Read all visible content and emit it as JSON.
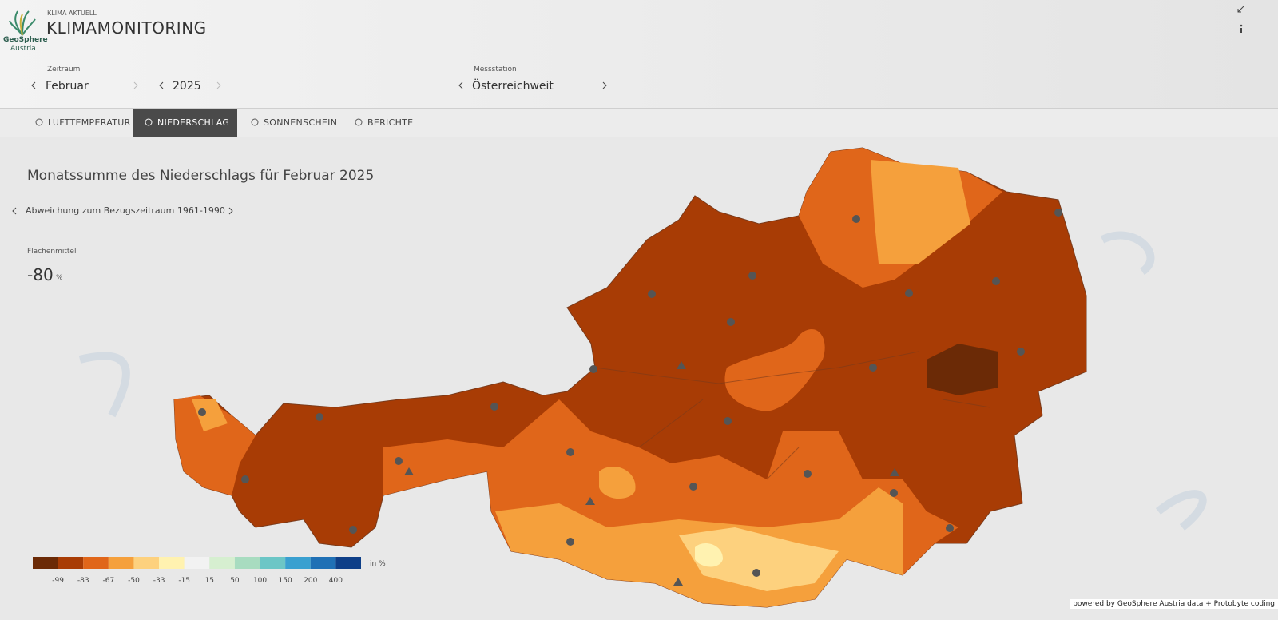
{
  "header": {
    "kicker": "KLIMA AKTUELL",
    "title": "KLIMAMONITORING",
    "logo": [
      "GeoSphere",
      "Austria"
    ]
  },
  "controls": {
    "period_label": "Zeitraum",
    "month": "Februar",
    "year": "2025",
    "station_label": "Messstation",
    "station": "Österreichweit"
  },
  "tabs": [
    "LUFTTEMPERATUR",
    "NIEDERSCHLAG",
    "SONNENSCHEIN",
    "BERICHTE"
  ],
  "active_tab": 1,
  "map": {
    "title": "Monatssumme des Niederschlags für Februar 2025",
    "reference": "Abweichung zum Bezugszeitraum 1961-1990",
    "mean_label": "Flächenmittel",
    "mean_value": "-80",
    "mean_unit": "%"
  },
  "legend": {
    "colors": [
      "#6b2a06",
      "#a83c05",
      "#e0661a",
      "#f5a03c",
      "#fdd17e",
      "#fff2b0",
      "#f2f2f2",
      "#d6efd0",
      "#a8dcc0",
      "#6cc6c6",
      "#3aa0d0",
      "#1f70b5",
      "#0e3f88"
    ],
    "labels": [
      "-99",
      "-83",
      "-67",
      "-50",
      "-33",
      "-15",
      "15",
      "50",
      "100",
      "150",
      "200",
      "400"
    ],
    "unit": "in %"
  },
  "attribution": "powered by GeoSphere Austria data + Protobyte coding"
}
